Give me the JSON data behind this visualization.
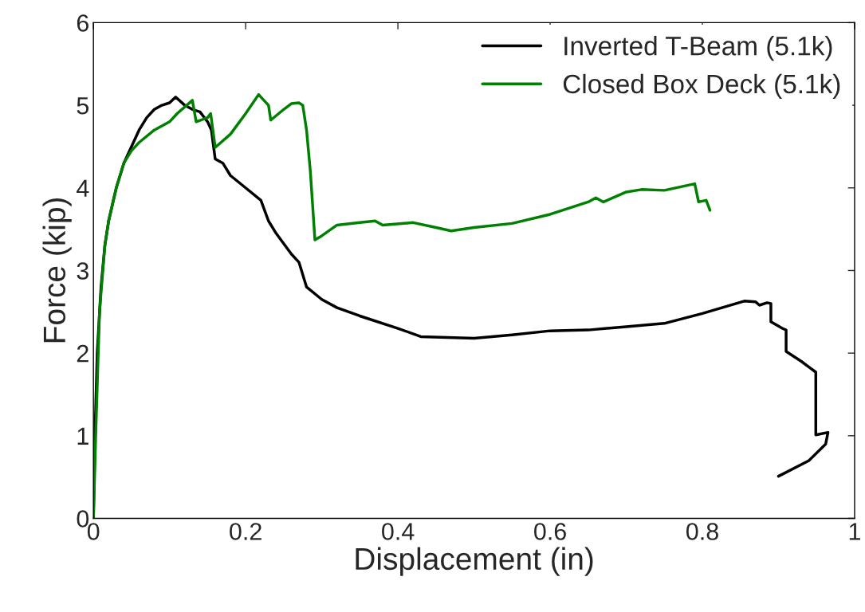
{
  "chart_data": {
    "type": "line",
    "xlabel": "Displacement (in)",
    "ylabel": "Force (kip)",
    "xlim": [
      0,
      1
    ],
    "ylim": [
      0,
      6
    ],
    "xticks": [
      0,
      0.2,
      0.4,
      0.6,
      0.8,
      1
    ],
    "yticks": [
      0,
      1,
      2,
      3,
      4,
      5,
      6
    ],
    "grid": false,
    "legend": "top right",
    "marker": "none",
    "line_style": "solid",
    "series": [
      {
        "name": "Inverted T-Beam (5.1k)",
        "color": "#000000",
        "x": [
          0,
          0.002,
          0.005,
          0.01,
          0.015,
          0.02,
          0.03,
          0.04,
          0.05,
          0.06,
          0.07,
          0.08,
          0.09,
          0.1,
          0.108,
          0.12,
          0.13,
          0.14,
          0.15,
          0.155,
          0.16,
          0.17,
          0.18,
          0.2,
          0.22,
          0.23,
          0.24,
          0.26,
          0.27,
          0.28,
          0.3,
          0.32,
          0.35,
          0.4,
          0.43,
          0.5,
          0.55,
          0.6,
          0.65,
          0.7,
          0.75,
          0.8,
          0.855,
          0.87,
          0.875,
          0.885,
          0.89,
          0.89,
          0.905,
          0.91,
          0.91,
          0.93,
          0.949,
          0.949,
          0.965,
          0.962,
          0.94,
          0.9
        ],
        "values": [
          0,
          1.0,
          2.0,
          2.8,
          3.3,
          3.6,
          4.0,
          4.3,
          4.5,
          4.7,
          4.85,
          4.95,
          5.0,
          5.03,
          5.1,
          5.0,
          4.95,
          4.92,
          4.8,
          4.7,
          4.35,
          4.3,
          4.15,
          4.0,
          3.85,
          3.6,
          3.45,
          3.2,
          3.1,
          2.8,
          2.65,
          2.55,
          2.45,
          2.3,
          2.2,
          2.18,
          2.22,
          2.27,
          2.28,
          2.32,
          2.36,
          2.48,
          2.63,
          2.62,
          2.58,
          2.61,
          2.6,
          2.38,
          2.3,
          2.28,
          2.02,
          1.9,
          1.77,
          1.01,
          1.04,
          0.9,
          0.7,
          0.51
        ]
      },
      {
        "name": "Closed Box Deck (5.1k)",
        "color": "#008000",
        "x": [
          0,
          0.003,
          0.008,
          0.015,
          0.02,
          0.03,
          0.04,
          0.05,
          0.06,
          0.08,
          0.1,
          0.11,
          0.13,
          0.135,
          0.15,
          0.154,
          0.16,
          0.18,
          0.2,
          0.217,
          0.23,
          0.233,
          0.25,
          0.26,
          0.27,
          0.275,
          0.28,
          0.285,
          0.291,
          0.3,
          0.32,
          0.35,
          0.37,
          0.38,
          0.42,
          0.45,
          0.47,
          0.5,
          0.55,
          0.6,
          0.65,
          0.66,
          0.67,
          0.7,
          0.72,
          0.75,
          0.79,
          0.795,
          0.805,
          0.81
        ],
        "values": [
          0,
          1.0,
          2.5,
          3.3,
          3.6,
          4.0,
          4.3,
          4.45,
          4.55,
          4.7,
          4.8,
          4.9,
          5.06,
          4.8,
          4.85,
          4.9,
          4.49,
          4.65,
          4.9,
          5.13,
          5.0,
          4.82,
          4.95,
          5.02,
          5.03,
          5.0,
          4.7,
          4.2,
          3.37,
          3.42,
          3.55,
          3.58,
          3.6,
          3.55,
          3.58,
          3.52,
          3.48,
          3.52,
          3.57,
          3.68,
          3.83,
          3.88,
          3.83,
          3.95,
          3.98,
          3.97,
          4.05,
          3.83,
          3.85,
          3.73
        ]
      }
    ]
  }
}
